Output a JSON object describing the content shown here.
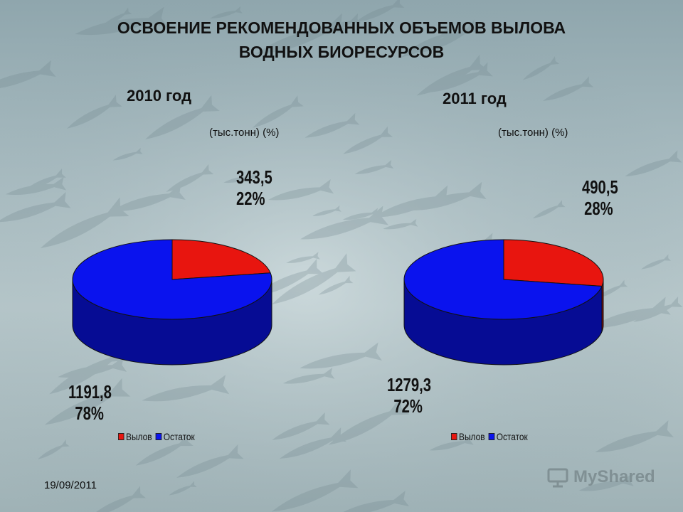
{
  "title_line1": "ОСВОЕНИЕ РЕКОМЕНДОВАННЫХ ОБЪЕМОВ ВЫЛОВА",
  "title_line2": "ВОДНЫХ БИОРЕСУРСОВ",
  "date": "19/09/2011",
  "watermark": "MyShared",
  "colors": {
    "catch": "#e8150f",
    "remainder": "#0a13ee"
  },
  "chart_data": [
    {
      "type": "pie",
      "title": "2010 год",
      "subtitle": "(тыс.тонн) (%)",
      "legend": [
        "Вылов",
        "Остаток"
      ],
      "legend_position": "bottom-right",
      "slices": [
        {
          "name": "Вылов",
          "value": 343.5,
          "value_label": "343,5",
          "percent_label": "22%",
          "percent": 22
        },
        {
          "name": "Остаток",
          "value": 1191.8,
          "value_label": "1191,8",
          "percent_label": "78%",
          "percent": 78
        }
      ]
    },
    {
      "type": "pie",
      "title": "2011 год",
      "subtitle": "(тыс.тонн) (%)",
      "legend": [
        "Вылов",
        "Остаток"
      ],
      "legend_position": "bottom-right",
      "slices": [
        {
          "name": "Вылов",
          "value": 490.5,
          "value_label": "490,5",
          "percent_label": "28%",
          "percent": 28
        },
        {
          "name": "Остаток",
          "value": 1279.3,
          "value_label": "1279,3",
          "percent_label": "72%",
          "percent": 72
        }
      ]
    }
  ]
}
